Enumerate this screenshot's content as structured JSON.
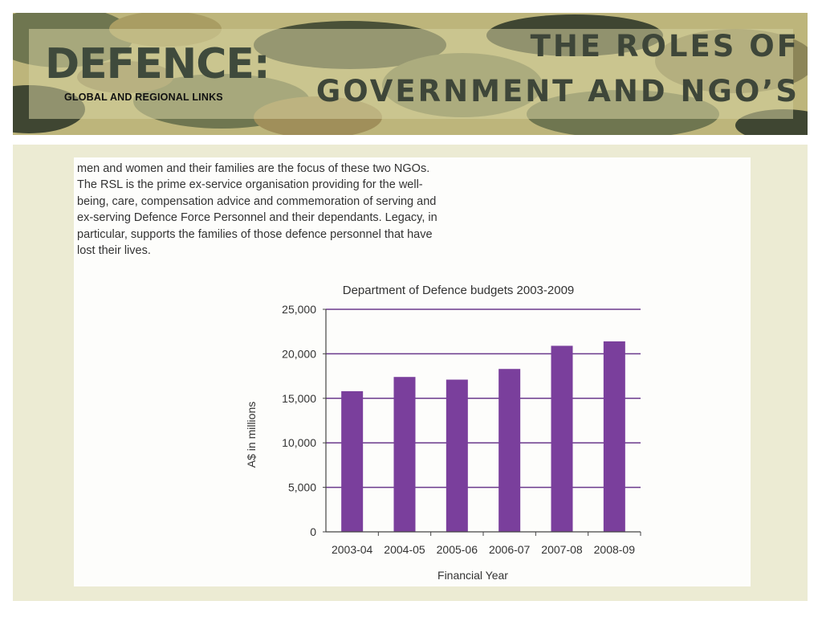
{
  "header": {
    "brand_title": "DEFENCE:",
    "brand_subtitle": "GLOBAL AND REGIONAL LINKS",
    "slide_title_lines": [
      "THE ROLES OF",
      "GOVERNMENT AND NGO’S"
    ]
  },
  "body_text_lines": [
    "men and women and their families are the focus of these two NGOs.",
    "The RSL is the prime ex-service organisation providing for the well-",
    "being, care, compensation advice and commemoration of serving and",
    "ex-serving Defence Force Personnel and their dependants. Legacy, in",
    "particular, supports the families of those defence personnel that have",
    "lost their lives."
  ],
  "colors": {
    "bar": "#7a3f9c",
    "gridline": "#6b3a8c",
    "axis": "#444444"
  },
  "chart_data": {
    "type": "bar",
    "title": "Department of Defence budgets 2003-2009",
    "xlabel": "Financial Year",
    "ylabel": "A$ in millions",
    "categories": [
      "2003-04",
      "2004-05",
      "2005-06",
      "2006-07",
      "2007-08",
      "2008-09"
    ],
    "values": [
      15800,
      17400,
      17100,
      18300,
      20900,
      21400
    ],
    "ylim": [
      0,
      25000
    ],
    "yticks": [
      0,
      5000,
      10000,
      15000,
      20000,
      25000
    ],
    "ytick_labels": [
      "0",
      "5,000",
      "10,000",
      "15,000",
      "20,000",
      "25,000"
    ],
    "grid": true,
    "legend": "none"
  }
}
